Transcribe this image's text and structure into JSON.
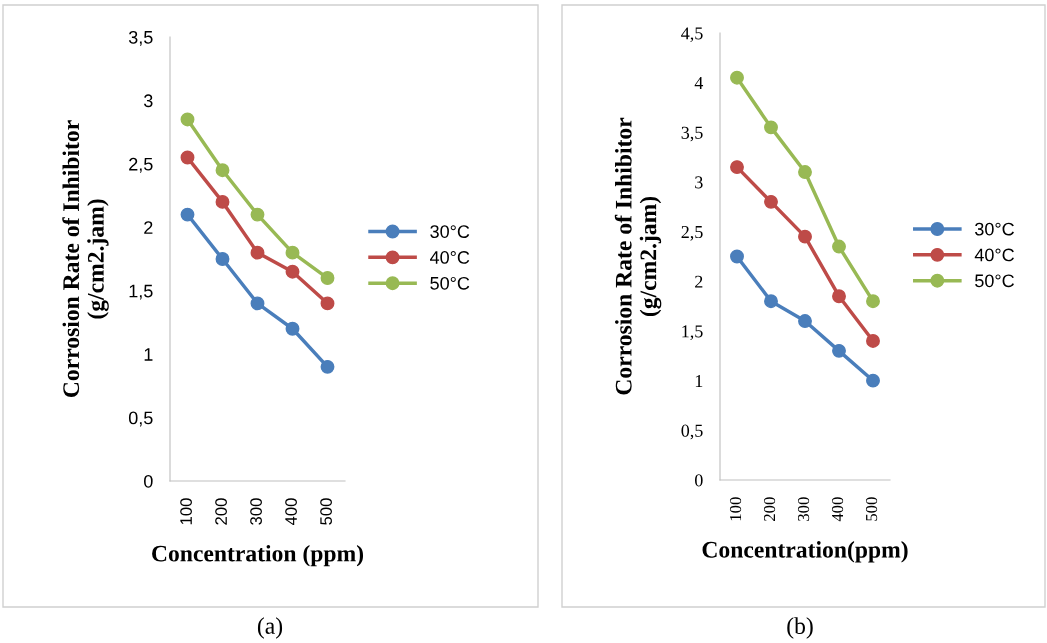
{
  "chart_data": [
    {
      "type": "line",
      "xlabel": "Concentration (ppm)",
      "ylabel": "Corrosion Rate of Inhibitor\n(g/cm2.jam)",
      "categories": [
        "100",
        "200",
        "300",
        "400",
        "500"
      ],
      "series": [
        {
          "name": "30°C",
          "color": "#4a7ebb",
          "values": [
            2.1,
            1.75,
            1.4,
            1.2,
            0.9
          ]
        },
        {
          "name": "40°C",
          "color": "#be4b48",
          "values": [
            2.55,
            2.2,
            1.8,
            1.65,
            1.4
          ]
        },
        {
          "name": "50°C",
          "color": "#98b954",
          "values": [
            2.85,
            2.45,
            2.1,
            1.8,
            1.6
          ]
        }
      ],
      "ylim": [
        0,
        3.5
      ],
      "yticks": [
        0,
        {
          "value": 0.5,
          "label": "0,5"
        },
        1,
        {
          "value": 1.5,
          "label": "1,5"
        },
        2,
        {
          "value": 2.5,
          "label": "2,5"
        },
        3,
        {
          "value": 3.5,
          "label": "3,5"
        }
      ],
      "marker": "circle",
      "line_style": "solid",
      "legend": "right",
      "grid": false,
      "annotations": [
        "(a)"
      ]
    },
    {
      "type": "line",
      "xlabel": "Concentration(ppm)",
      "ylabel": "Corrosion Rate of Inhibitor\n(g/cm2.jam)",
      "categories": [
        "100",
        "200",
        "300",
        "400",
        "500"
      ],
      "series": [
        {
          "name": "30°C",
          "color": "#4a7ebb",
          "values": [
            2.25,
            1.8,
            1.6,
            1.3,
            1.0
          ]
        },
        {
          "name": "40°C",
          "color": "#be4b48",
          "values": [
            3.15,
            2.8,
            2.45,
            1.85,
            1.4
          ]
        },
        {
          "name": "50°C",
          "color": "#98b954",
          "values": [
            4.05,
            3.55,
            3.1,
            2.35,
            1.8
          ]
        }
      ],
      "ylim": [
        0,
        4.5
      ],
      "yticks": [
        0,
        {
          "value": 0.5,
          "label": "0,5"
        },
        1,
        {
          "value": 1.5,
          "label": "1,5"
        },
        2,
        {
          "value": 2.5,
          "label": "2,5"
        },
        3,
        {
          "value": 3.5,
          "label": "3,5"
        },
        4,
        {
          "value": 4.5,
          "label": "4,5"
        }
      ],
      "marker": "circle",
      "line_style": "solid",
      "legend": "right",
      "grid": false,
      "annotations": [
        "(b)"
      ]
    }
  ]
}
